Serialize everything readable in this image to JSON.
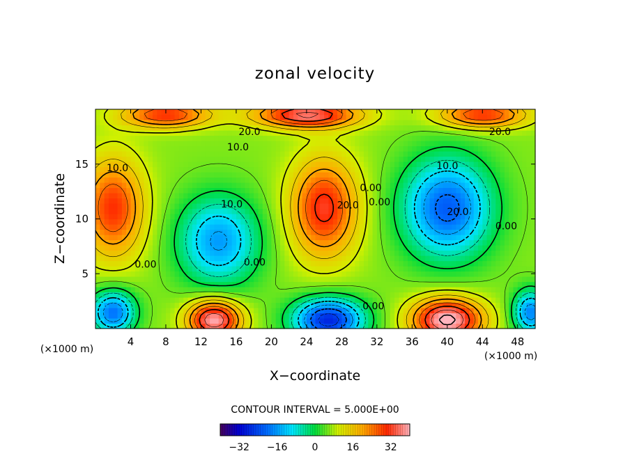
{
  "chart_data": {
    "type": "heatmap",
    "title": "zonal velocity",
    "xlabel": "X−coordinate",
    "ylabel": "Z−coordinate",
    "x_unit_label": "(×1000 m)",
    "z_unit_label": "(×1000 m)",
    "x_ticks": [
      4,
      8,
      12,
      16,
      20,
      24,
      28,
      32,
      36,
      40,
      44,
      48
    ],
    "z_ticks": [
      5,
      10,
      15
    ],
    "xlim": [
      0,
      50
    ],
    "zlim": [
      0,
      20
    ],
    "contour_interval_text": "CONTOUR INTERVAL = 5.000E+00",
    "contour_interval": 5.0,
    "colorbar": {
      "ticks": [
        -32,
        -16,
        0,
        16,
        32
      ],
      "tick_labels": [
        "−32",
        "−16",
        "0",
        "16",
        "32"
      ],
      "range": [
        -40,
        40
      ]
    },
    "contour_labels": [
      {
        "text": "20.0",
        "x": 17.5,
        "z": 17.9
      },
      {
        "text": "20.0",
        "x": 46.0,
        "z": 17.9
      },
      {
        "text": "10.0",
        "x": 16.2,
        "z": 16.5
      },
      {
        "text": "10.0",
        "x": 2.5,
        "z": 14.6
      },
      {
        "text": "10.0",
        "x": 40.0,
        "z": 14.8
      },
      {
        "text": "10.0",
        "x": 15.5,
        "z": 11.3
      },
      {
        "text": "20.0",
        "x": 28.7,
        "z": 11.2
      },
      {
        "text": "20.0",
        "x": 41.2,
        "z": 10.6
      },
      {
        "text": "0.00",
        "x": 31.3,
        "z": 12.8
      },
      {
        "text": "0.00",
        "x": 32.3,
        "z": 11.5
      },
      {
        "text": "0.00",
        "x": 46.7,
        "z": 9.3
      },
      {
        "text": "0.00",
        "x": 5.7,
        "z": 5.8
      },
      {
        "text": "0.00",
        "x": 18.1,
        "z": 6.0
      },
      {
        "text": "0.00",
        "x": 31.6,
        "z": 2.0
      }
    ],
    "features": [
      {
        "x": 2,
        "z": 11,
        "value": 24,
        "sx": 3.5,
        "sz": 4.5
      },
      {
        "x": 14,
        "z": 8,
        "value": -22,
        "sx": 4.5,
        "sz": 4
      },
      {
        "x": 26,
        "z": 11,
        "value": 26,
        "sx": 3.8,
        "sz": 4.5
      },
      {
        "x": 40,
        "z": 11,
        "value": -28,
        "sx": 5,
        "sz": 4.5
      },
      {
        "x": 2,
        "z": 1.5,
        "value": -26,
        "sx": 2.5,
        "sz": 2
      },
      {
        "x": 13.5,
        "z": 0.8,
        "value": 34,
        "sx": 3,
        "sz": 1.8
      },
      {
        "x": 26.5,
        "z": 0.8,
        "value": -34,
        "sx": 4,
        "sz": 2
      },
      {
        "x": 40,
        "z": 0.8,
        "value": 36,
        "sx": 4,
        "sz": 2
      },
      {
        "x": 49.5,
        "z": 1.5,
        "value": -24,
        "sx": 2,
        "sz": 2
      },
      {
        "x": 24,
        "z": 19.5,
        "value": 30,
        "sx": 6,
        "sz": 1.2
      },
      {
        "x": 8,
        "z": 19.5,
        "value": 24,
        "sx": 5,
        "sz": 1.2
      },
      {
        "x": 44,
        "z": 19.5,
        "value": 24,
        "sx": 5,
        "sz": 1.2
      }
    ],
    "background_value": 6
  }
}
